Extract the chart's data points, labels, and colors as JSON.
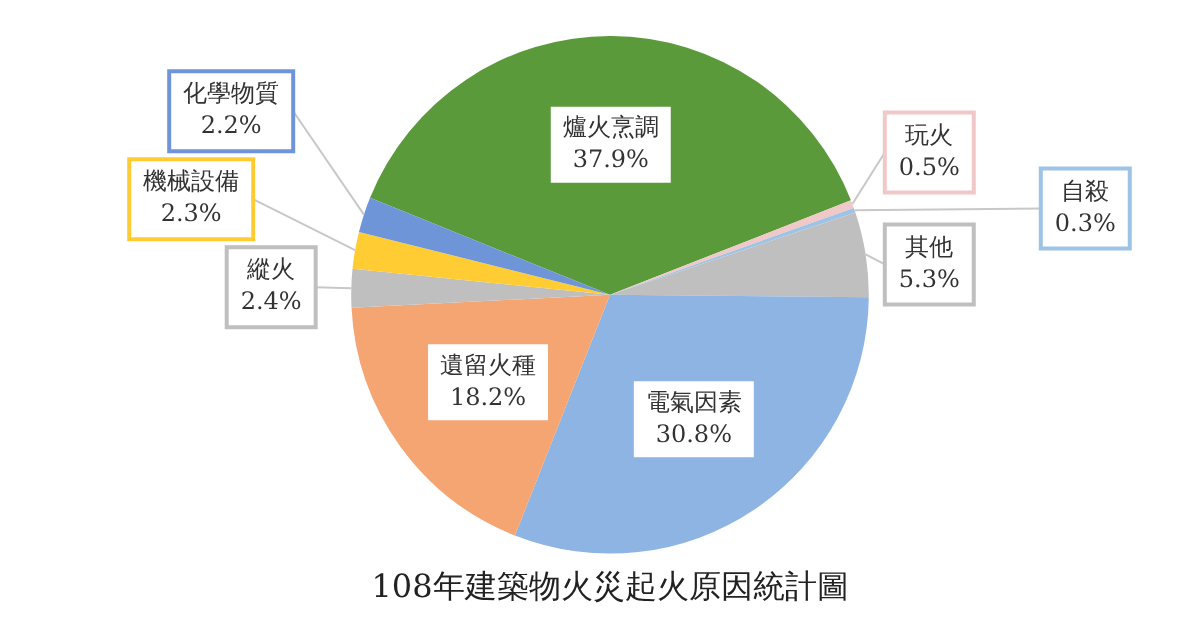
{
  "chart_data": {
    "type": "pie",
    "title": "108年建築物火災起火原因統計圖",
    "categories": [
      "爐火烹調",
      "玩火",
      "自殺",
      "其他",
      "電氣因素",
      "遺留火種",
      "縱火",
      "機械設備",
      "化學物質"
    ],
    "values": [
      37.9,
      0.5,
      0.3,
      5.3,
      30.8,
      18.2,
      2.4,
      2.3,
      2.2
    ],
    "value_labels": [
      "37.9%",
      "0.5%",
      "0.3%",
      "5.3%",
      "30.8%",
      "18.2%",
      "2.4%",
      "2.3%",
      "2.2%"
    ],
    "colors": [
      "#5b9a3a",
      "#f0c8c8",
      "#9dc3e6",
      "#bfbfbf",
      "#8db4e2",
      "#f4a572",
      "#bfbfbf",
      "#ffcc33",
      "#6e95d8"
    ],
    "legend": false
  }
}
